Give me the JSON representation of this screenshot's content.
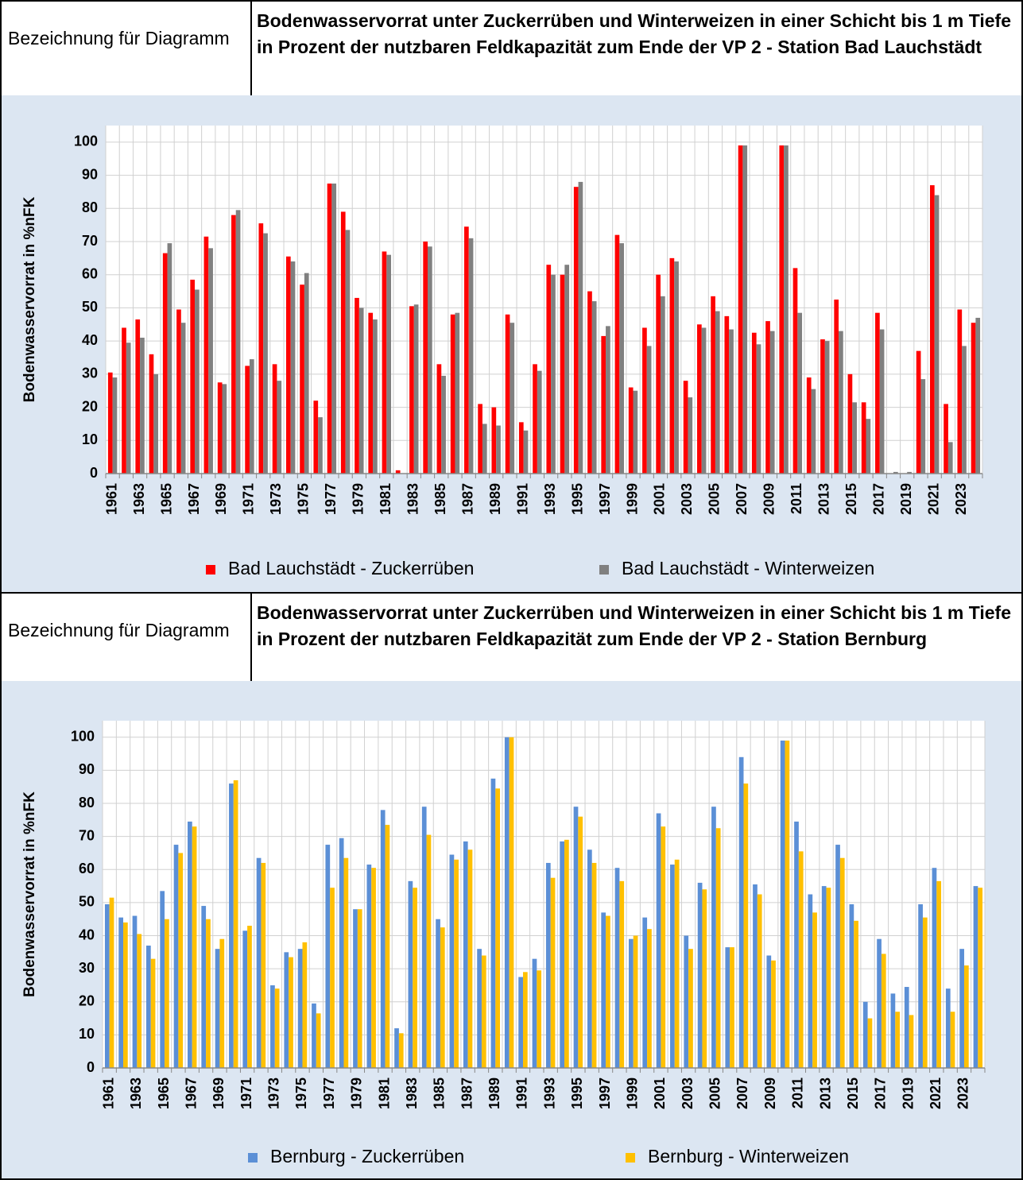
{
  "chart_data": [
    {
      "type": "bar",
      "title_label": "Bezeichnung für Diagramm",
      "title": "Bodenwasservorrat unter Zuckerrüben und Winterweizen in einer Schicht bis 1 m Tiefe in Prozent der nutzbaren Feldkapazität zum Ende der VP 2 - Station Bad Lauchstädt",
      "y_label": "Bodenwasservorrat in %nFK",
      "categories": [
        "1961",
        null,
        "1963",
        null,
        "1965",
        null,
        "1967",
        null,
        "1969",
        null,
        "1971",
        null,
        "1973",
        null,
        "1975",
        null,
        "1977",
        null,
        "1979",
        null,
        "1981",
        null,
        "1983",
        null,
        "1985",
        null,
        "1987",
        null,
        "1989",
        null,
        "1991",
        null,
        "1993",
        null,
        "1995",
        null,
        "1997",
        null,
        "1999",
        null,
        "2001",
        null,
        "2003",
        null,
        "2005",
        null,
        "2007",
        null,
        "2009",
        null,
        "2011",
        null,
        "2013",
        null,
        "2015",
        null,
        "2017",
        null,
        "2019",
        null,
        "2021",
        null,
        "2023",
        null
      ],
      "series": [
        {
          "name": "Bad Lauchstädt - Zuckerrüben",
          "color": "#ff0000",
          "values": [
            30.5,
            44,
            46.5,
            36,
            66.5,
            49.5,
            58.5,
            71.5,
            27.5,
            78,
            32.5,
            75.5,
            33,
            65.5,
            57,
            22,
            87.5,
            79,
            53,
            48.5,
            67,
            1,
            50.5,
            70,
            33,
            48,
            74.5,
            21,
            20,
            48,
            15.5,
            33,
            63,
            60,
            86.5,
            55,
            41.5,
            72,
            26,
            44,
            60,
            65,
            28,
            45,
            53.5,
            47.5,
            99,
            42.5,
            46,
            99,
            62,
            29,
            40.5,
            52.5,
            30,
            21.5,
            48.5,
            0,
            0,
            37,
            87,
            21,
            49.5,
            45.5
          ]
        },
        {
          "name": "Bad Lauchstädt - Winterweizen",
          "color": "#808080",
          "values": [
            29,
            39.5,
            41,
            30,
            69.5,
            45.5,
            55.5,
            68,
            27,
            79.5,
            34.5,
            72.5,
            28,
            64,
            60.5,
            17,
            87.5,
            73.5,
            50,
            46.5,
            66,
            0,
            51,
            68.5,
            29.5,
            48.5,
            71,
            15,
            14.5,
            45.5,
            13,
            31,
            60,
            63,
            88,
            52,
            44.5,
            69.5,
            25,
            38.5,
            53.5,
            64,
            23,
            44,
            49,
            43.5,
            99,
            39,
            43,
            99,
            48.5,
            25.5,
            40,
            43,
            21.5,
            16.5,
            43.5,
            0.5,
            0.5,
            28.5,
            84,
            9.5,
            38.5,
            47
          ]
        }
      ],
      "ylim": [
        0,
        105
      ],
      "yticks": [
        0,
        10,
        20,
        30,
        40,
        50,
        60,
        70,
        80,
        90,
        100
      ],
      "grid": true
    },
    {
      "type": "bar",
      "title_label": "Bezeichnung für Diagramm",
      "title": "Bodenwasservorrat unter Zuckerrüben und Winterweizen in einer Schicht bis 1 m Tiefe in Prozent der nutzbaren Feldkapazität zum Ende der VP 2 - Station Bernburg",
      "y_label": "Bodenwasservorrat in %nFK",
      "categories": [
        "1961",
        null,
        "1963",
        null,
        "1965",
        null,
        "1967",
        null,
        "1969",
        null,
        "1971",
        null,
        "1973",
        null,
        "1975",
        null,
        "1977",
        null,
        "1979",
        null,
        "1981",
        null,
        "1983",
        null,
        "1985",
        null,
        "1987",
        null,
        "1989",
        null,
        "1991",
        null,
        "1993",
        null,
        "1995",
        null,
        "1997",
        null,
        "1999",
        null,
        "2001",
        null,
        "2003",
        null,
        "2005",
        null,
        "2007",
        null,
        "2009",
        null,
        "2011",
        null,
        "2013",
        null,
        "2015",
        null,
        "2017",
        null,
        "2019",
        null,
        "2021",
        null,
        "2023",
        null
      ],
      "series": [
        {
          "name": "Bernburg - Zuckerrüben",
          "color": "#5b8fd6",
          "values": [
            49.5,
            45.5,
            46,
            37,
            53.5,
            67.5,
            74.5,
            49,
            36,
            86,
            41.5,
            63.5,
            25,
            35,
            36,
            19.5,
            67.5,
            69.5,
            48,
            61.5,
            78,
            12,
            56.5,
            79,
            45,
            64.5,
            68.5,
            36,
            87.5,
            100,
            27.5,
            33,
            62,
            68.5,
            79,
            66,
            47,
            60.5,
            39,
            45.5,
            77,
            61.5,
            40,
            56,
            79,
            36.5,
            94,
            55.5,
            34,
            99,
            74.5,
            52.5,
            55,
            67.5,
            49.5,
            20,
            39,
            22.5,
            24.5,
            49.5,
            60.5,
            24,
            36,
            55
          ]
        },
        {
          "name": "Bernburg - Winterweizen",
          "color": "#ffc000",
          "values": [
            51.5,
            44,
            40.5,
            33,
            45,
            65,
            73,
            45,
            39,
            87,
            43,
            62,
            24,
            33.5,
            38,
            16.5,
            54.5,
            63.5,
            48,
            60.5,
            73.5,
            10.5,
            54.5,
            70.5,
            42.5,
            63,
            66,
            34,
            84.5,
            100,
            29,
            29.5,
            57.5,
            69,
            76,
            62,
            46,
            56.5,
            40,
            42,
            73,
            63,
            36,
            54,
            72.5,
            36.5,
            86,
            52.5,
            32.5,
            99,
            65.5,
            47,
            54.5,
            63.5,
            44.5,
            15,
            34.5,
            17,
            16,
            45.5,
            56.5,
            17,
            31,
            54.5
          ]
        }
      ],
      "ylim": [
        0,
        105
      ],
      "yticks": [
        0,
        10,
        20,
        30,
        40,
        50,
        60,
        70,
        80,
        90,
        100
      ],
      "grid": true
    }
  ]
}
